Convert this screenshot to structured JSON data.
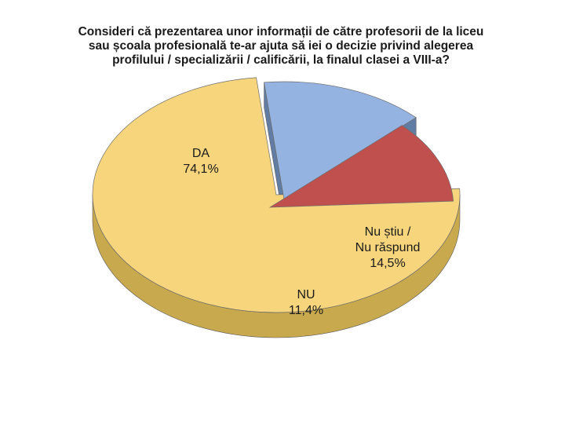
{
  "chart_data": {
    "type": "pie",
    "title": [
      "Consideri că prezentarea unor informații de către profesorii de la liceu",
      "sau școala profesională te-ar ajuta să iei o decizie privind alegerea",
      "profilului / specializării / calificării, la finalul clasei a VIII-a?"
    ],
    "slices": [
      {
        "label": [
          "DA",
          "74,1%"
        ],
        "value": 74.1,
        "color": "#f6d57c",
        "side": "#c9a94e"
      },
      {
        "label": [
          "Nu știu /",
          "Nu răspund",
          "14,5%"
        ],
        "value": 14.5,
        "color": "#95b3e0",
        "side": "#526f9a"
      },
      {
        "label": [
          "NU",
          "11,4%"
        ],
        "value": 11.4,
        "color": "#c0504d",
        "side": "#7e2f2e"
      }
    ]
  }
}
